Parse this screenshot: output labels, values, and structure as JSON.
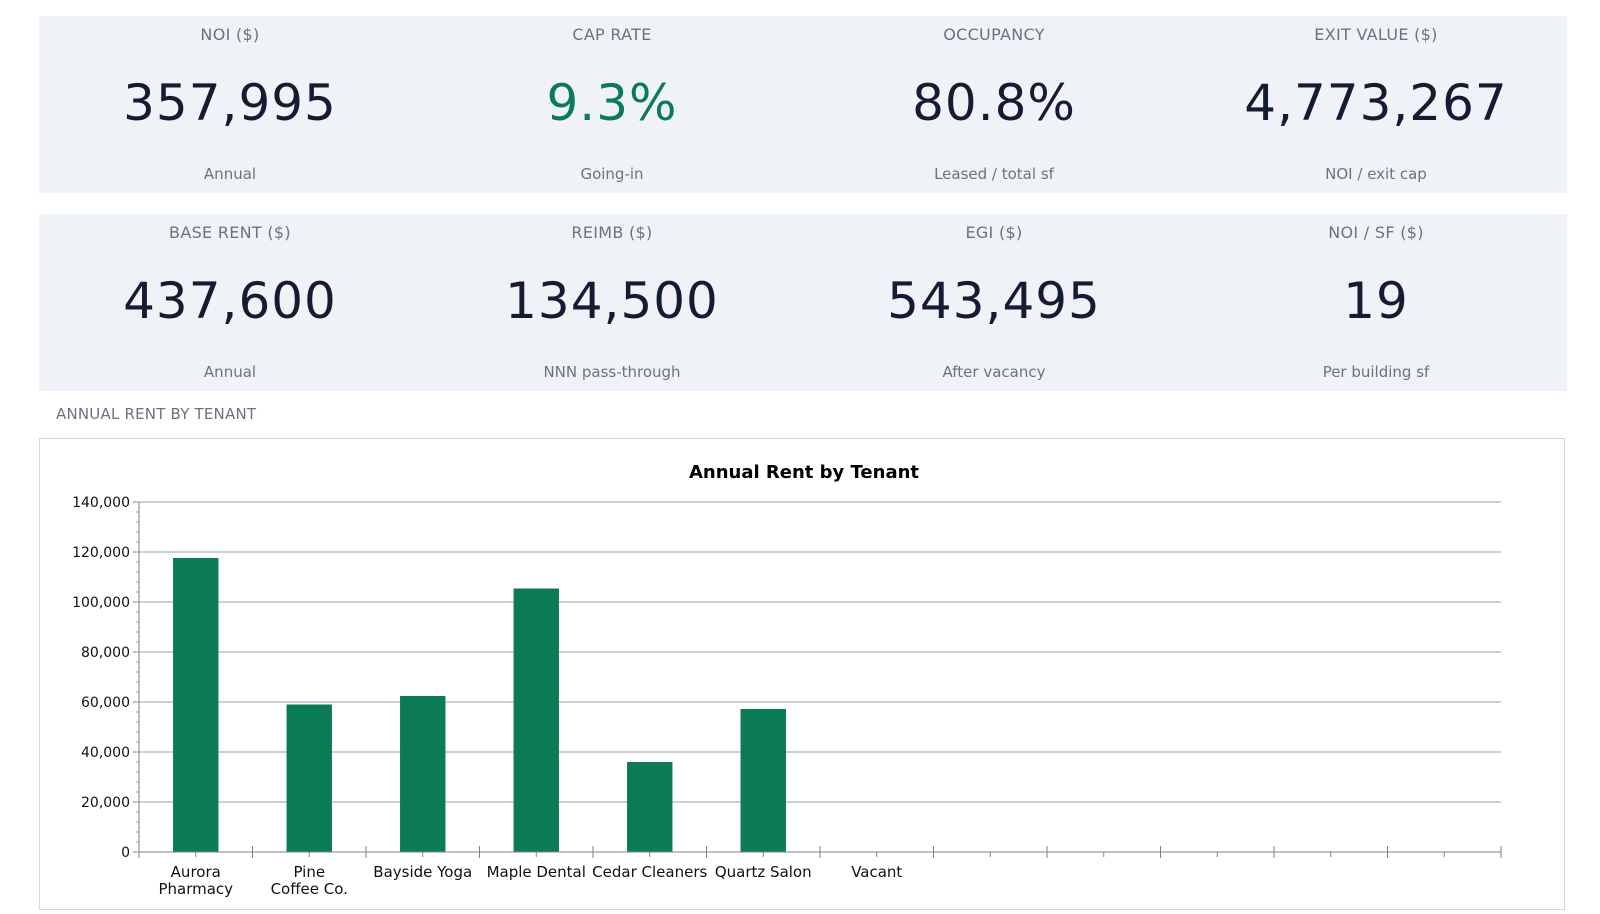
{
  "kpis_row1": [
    {
      "label": "NOI ($)",
      "value": "357,995",
      "sub": "Annual"
    },
    {
      "label": "CAP RATE",
      "value": "9.3%",
      "sub": "Going-in"
    },
    {
      "label": "OCCUPANCY",
      "value": "80.8%",
      "sub": "Leased / total sf"
    },
    {
      "label": "EXIT VALUE ($)",
      "value": "4,773,267",
      "sub": "NOI / exit cap"
    }
  ],
  "kpis_row2": [
    {
      "label": "BASE RENT ($)",
      "value": "437,600",
      "sub": "Annual"
    },
    {
      "label": "REIMB ($)",
      "value": "134,500",
      "sub": "NNN pass-through"
    },
    {
      "label": "EGI ($)",
      "value": "543,495",
      "sub": "After vacancy"
    },
    {
      "label": "NOI / SF ($)",
      "value": "19",
      "sub": "Per building sf"
    }
  ],
  "colors": {
    "accent": "#0b7a57",
    "value_text": "#131c33",
    "muted": "#6b7280",
    "card_bg": "#eff2f6"
  },
  "section_title": "ANNUAL RENT BY TENANT",
  "chart_data": {
    "type": "bar",
    "title": "Annual Rent by Tenant",
    "categories": [
      "Aurora Pharmacy",
      "Pine Coffee Co.",
      "Bayside Yoga",
      "Maple Dental",
      "Cedar Cleaners",
      "Quartz Salon",
      "Vacant",
      "",
      "",
      "",
      "",
      ""
    ],
    "values": [
      117600,
      59000,
      62400,
      105400,
      36000,
      57200,
      0,
      0,
      0,
      0,
      0,
      0
    ],
    "ylim": [
      0,
      140000
    ],
    "yticks": [
      "0",
      "20,000",
      "40,000",
      "60,000",
      "80,000",
      "100,000",
      "120,000",
      "140,000"
    ],
    "xlabel": "",
    "ylabel": "",
    "grid": true,
    "legend": "none",
    "bar_color": "#0b7a57"
  }
}
